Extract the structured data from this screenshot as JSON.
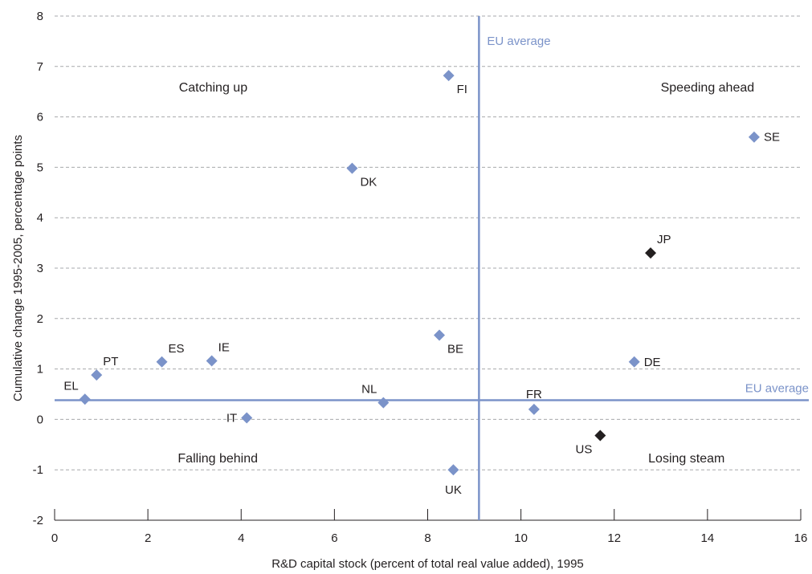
{
  "chart_data": {
    "type": "scatter",
    "xlabel": "R&D capital stock (percent of total real value added), 1995",
    "ylabel": "Cumulative change 1995-2005, percentage points",
    "xlim": [
      0,
      16
    ],
    "ylim": [
      -2,
      8
    ],
    "x_ticks": [
      0,
      2,
      4,
      6,
      8,
      10,
      12,
      14,
      16
    ],
    "y_ticks": [
      -2,
      -1,
      0,
      1,
      2,
      3,
      4,
      5,
      6,
      7,
      8
    ],
    "grid": "horizontal dashed",
    "colors": {
      "eu_point": "#7b93c9",
      "non_eu_point": "#231f20",
      "reference_line": "#7b93c9",
      "grid": "#a7a9ac",
      "text": "#231f20"
    },
    "points": [
      {
        "label": "FI",
        "x": 8.45,
        "y": 6.82,
        "group": "eu",
        "label_pos": "below-right"
      },
      {
        "label": "SE",
        "x": 15.0,
        "y": 5.6,
        "group": "eu",
        "label_pos": "right"
      },
      {
        "label": "DK",
        "x": 6.38,
        "y": 4.98,
        "group": "eu",
        "label_pos": "below-right"
      },
      {
        "label": "JP",
        "x": 12.78,
        "y": 3.3,
        "group": "non_eu",
        "label_pos": "above-right"
      },
      {
        "label": "BE",
        "x": 8.25,
        "y": 1.67,
        "group": "eu",
        "label_pos": "below-right"
      },
      {
        "label": "DE",
        "x": 12.43,
        "y": 1.14,
        "group": "eu",
        "label_pos": "right"
      },
      {
        "label": "IE",
        "x": 3.37,
        "y": 1.16,
        "group": "eu",
        "label_pos": "above-right"
      },
      {
        "label": "ES",
        "x": 2.3,
        "y": 1.14,
        "group": "eu",
        "label_pos": "above-right"
      },
      {
        "label": "PT",
        "x": 0.9,
        "y": 0.88,
        "group": "eu",
        "label_pos": "above-right"
      },
      {
        "label": "EL",
        "x": 0.65,
        "y": 0.4,
        "group": "eu",
        "label_pos": "above-left"
      },
      {
        "label": "NL",
        "x": 7.05,
        "y": 0.33,
        "group": "eu",
        "label_pos": "above-left"
      },
      {
        "label": "FR",
        "x": 10.28,
        "y": 0.2,
        "group": "eu",
        "label_pos": "above"
      },
      {
        "label": "IT",
        "x": 4.12,
        "y": 0.03,
        "group": "eu",
        "label_pos": "left"
      },
      {
        "label": "US",
        "x": 11.7,
        "y": -0.32,
        "group": "non_eu",
        "label_pos": "below-left"
      },
      {
        "label": "UK",
        "x": 8.55,
        "y": -1.0,
        "group": "eu",
        "label_pos": "below"
      }
    ],
    "reference_lines": [
      {
        "orientation": "vertical",
        "value": 9.1,
        "label": "EU average"
      },
      {
        "orientation": "horizontal",
        "value": 0.38,
        "label": "EU average"
      }
    ],
    "quadrant_labels": [
      {
        "text": "Catching up",
        "x": 3.4,
        "y": 6.5
      },
      {
        "text": "Speeding ahead",
        "x": 14.0,
        "y": 6.5
      },
      {
        "text": "Falling behind",
        "x": 3.5,
        "y": -0.85
      },
      {
        "text": "Losing steam",
        "x": 13.55,
        "y": -0.85
      }
    ]
  }
}
